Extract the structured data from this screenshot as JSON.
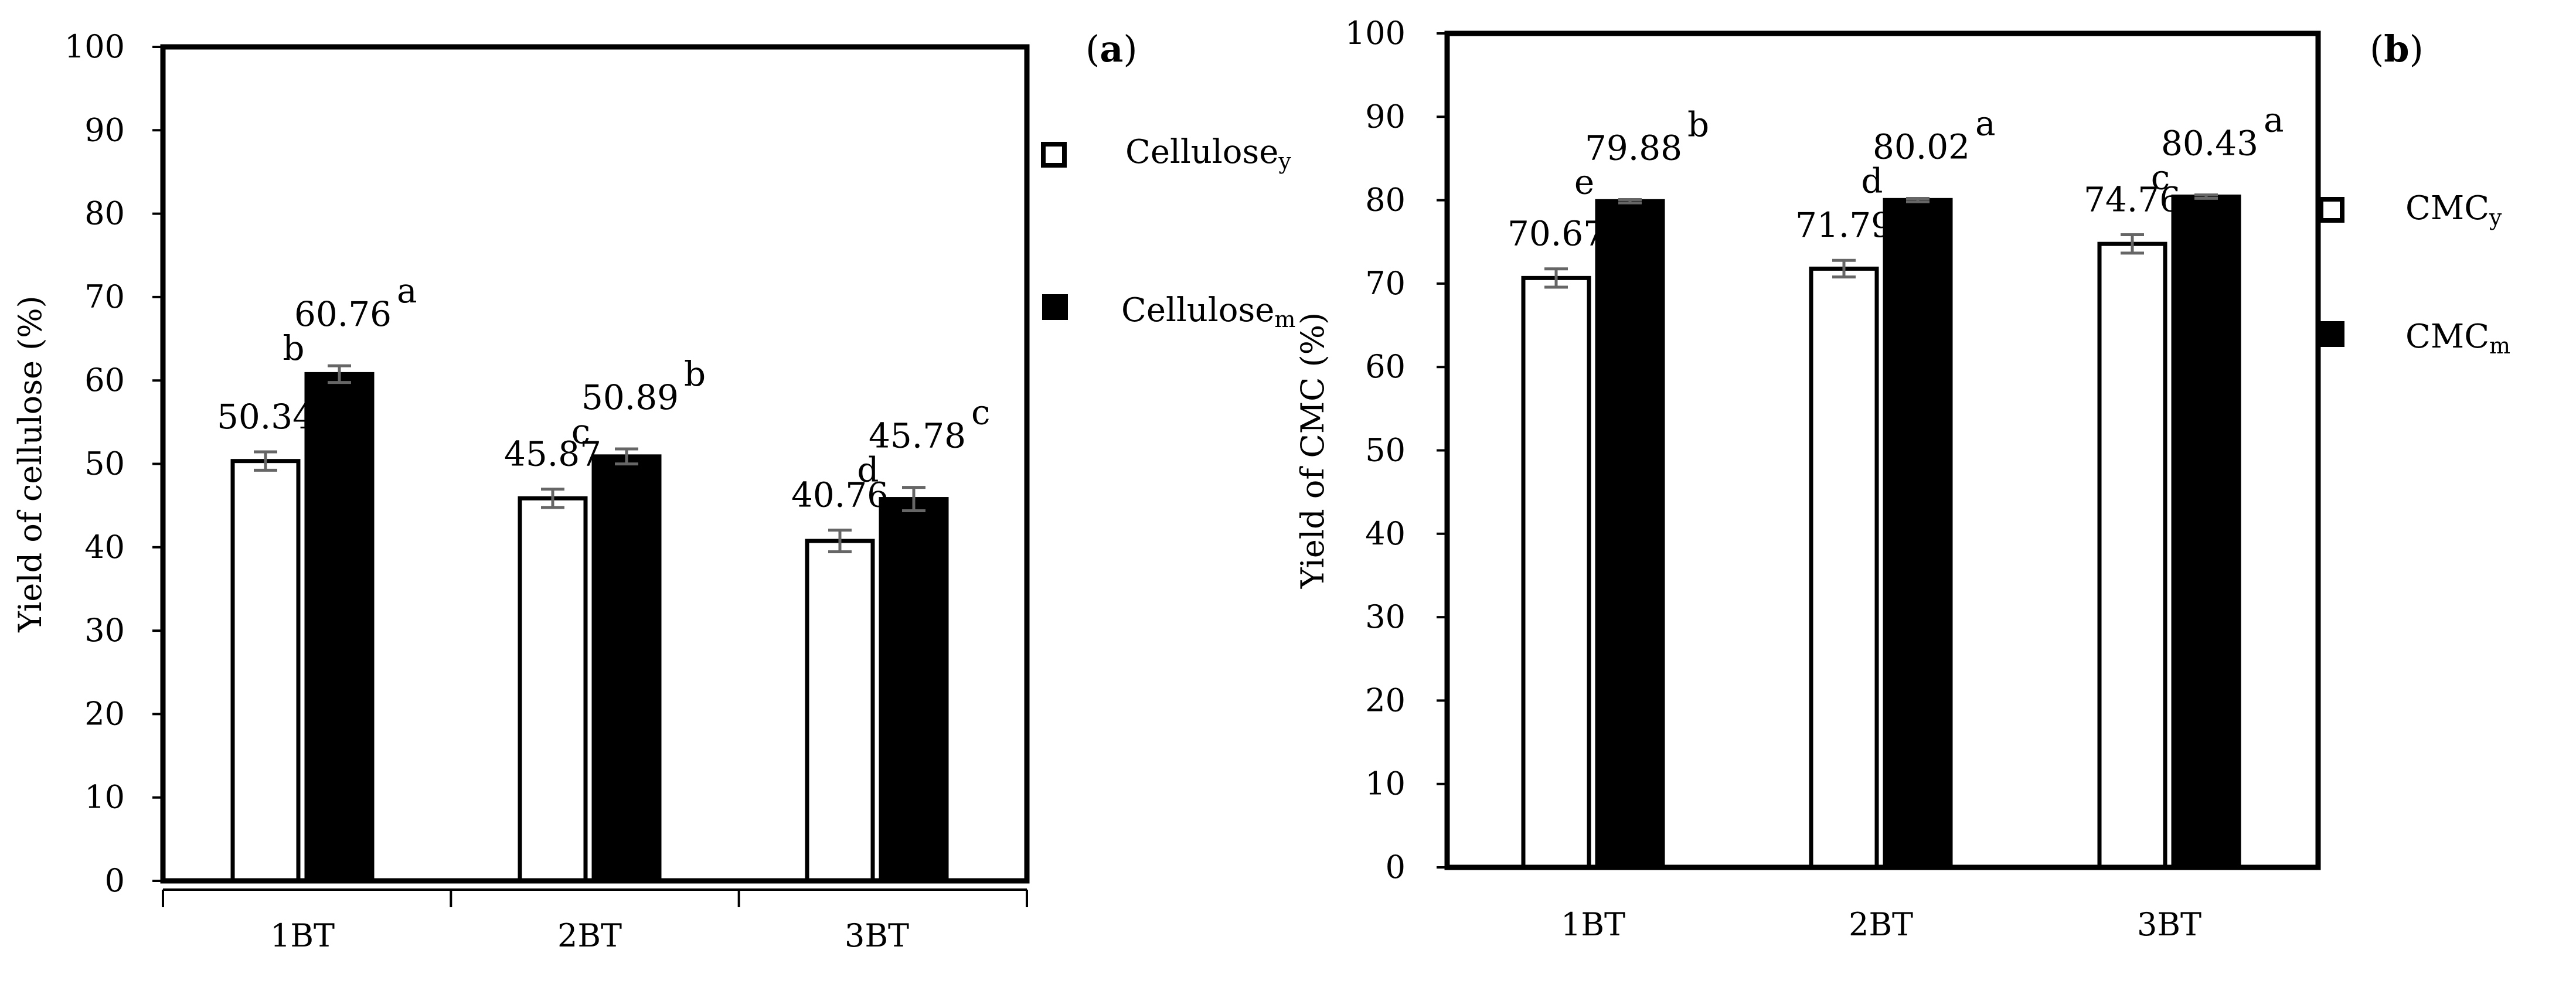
{
  "chart_data": [
    {
      "panel_label": "(a)",
      "type": "bar",
      "title": "",
      "xlabel": "",
      "ylabel": "Yield of cellulose (%)",
      "ylim": [
        0,
        100
      ],
      "yticks": [
        "0",
        "10",
        "20",
        "30",
        "40",
        "50",
        "60",
        "70",
        "80",
        "90",
        "100"
      ],
      "categories": [
        "1BT",
        "2BT",
        "3BT"
      ],
      "series": [
        {
          "name": "Cellulose",
          "name_sub": "y",
          "fill": "#ffffff",
          "values": [
            50.34,
            45.87,
            40.76
          ],
          "value_labels": [
            "50.34",
            "45.87",
            "40.76"
          ],
          "error": [
            1.1,
            1.1,
            1.3
          ],
          "letters": [
            "",
            "",
            ""
          ]
        },
        {
          "name": "Cellulose",
          "name_sub": "m",
          "fill": "#000000",
          "values": [
            60.76,
            50.89,
            45.78
          ],
          "value_labels": [
            "60.76",
            "50.89",
            "45.78"
          ],
          "error": [
            1.0,
            0.9,
            1.4
          ],
          "letters": [
            "a",
            "b",
            "c"
          ]
        }
      ],
      "pair_letters": [
        "b",
        "c",
        "d"
      ],
      "legend_position": "right"
    },
    {
      "panel_label": "(b)",
      "type": "bar",
      "title": "",
      "xlabel": "",
      "ylabel": "Yield of CMC (%)",
      "ylim": [
        0,
        100
      ],
      "yticks": [
        "0",
        "10",
        "20",
        "30",
        "40",
        "50",
        "60",
        "70",
        "80",
        "90",
        "100"
      ],
      "categories": [
        "1BT",
        "2BT",
        "3BT"
      ],
      "series": [
        {
          "name": "CMC",
          "name_sub": "y",
          "fill": "#ffffff",
          "values": [
            70.67,
            71.79,
            74.76
          ],
          "value_labels": [
            "70.67",
            "71.79",
            "74.76"
          ],
          "error": [
            1.1,
            1.0,
            1.1
          ],
          "letters": [
            "",
            "",
            ""
          ]
        },
        {
          "name": "CMC",
          "name_sub": "m",
          "fill": "#000000",
          "values": [
            79.88,
            80.02,
            80.43
          ],
          "value_labels": [
            "79.88",
            "80.02",
            "80.43"
          ],
          "error": [
            0.2,
            0.2,
            0.2
          ],
          "letters": [
            "b",
            "a",
            "a"
          ]
        }
      ],
      "pair_letters": [
        "e",
        "d",
        "c"
      ],
      "legend_position": "right"
    }
  ]
}
